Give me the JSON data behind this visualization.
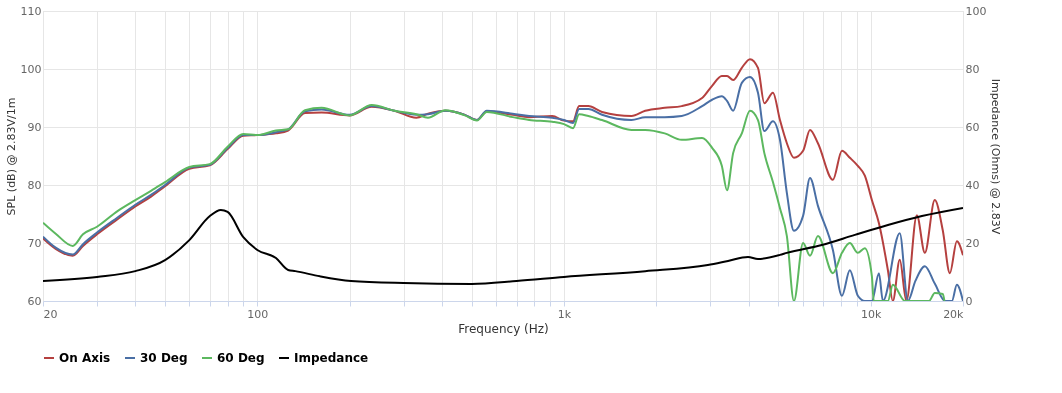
{
  "chart_data": {
    "type": "line",
    "xlabel": "Frequency (Hz)",
    "ylabel": "SPL (dB) @ 2.83V/1m",
    "y2label": "Impedance (Ohms) @ 2.83V",
    "log": "x",
    "grid": true,
    "legend": "bottom",
    "xlim": [
      20,
      20000
    ],
    "xticks": [
      20,
      {
        "value": 30,
        "label": null
      },
      {
        "value": 40,
        "label": null
      },
      {
        "value": 50,
        "label": null
      },
      {
        "value": 60,
        "label": null
      },
      {
        "value": 70,
        "label": null
      },
      {
        "value": 80,
        "label": null
      },
      {
        "value": 90,
        "label": null
      },
      100,
      {
        "value": 200,
        "label": null
      },
      {
        "value": 300,
        "label": null
      },
      {
        "value": 400,
        "label": null
      },
      {
        "value": 500,
        "label": null
      },
      {
        "value": 600,
        "label": null
      },
      {
        "value": 700,
        "label": null
      },
      {
        "value": 800,
        "label": null
      },
      {
        "value": 900,
        "label": null
      },
      {
        "value": 1000,
        "label": "1k"
      },
      {
        "value": 2000,
        "label": null
      },
      {
        "value": 3000,
        "label": null
      },
      {
        "value": 4000,
        "label": null
      },
      {
        "value": 5000,
        "label": null
      },
      {
        "value": 6000,
        "label": null
      },
      {
        "value": 7000,
        "label": null
      },
      {
        "value": 8000,
        "label": null
      },
      {
        "value": 9000,
        "label": null
      },
      {
        "value": 10000,
        "label": "10k"
      },
      {
        "value": 20000,
        "label": "20k"
      }
    ],
    "ylim": [
      60,
      110
    ],
    "yticks": [
      60,
      70,
      80,
      90,
      100,
      110
    ],
    "y2lim": [
      0,
      100
    ],
    "y2ticks": [
      0,
      20,
      40,
      60,
      80,
      100
    ],
    "series": [
      {
        "name": "On Axis",
        "color": "#b5403f",
        "x": [
          20,
          22,
          25,
          27,
          30,
          35,
          40,
          45,
          50,
          60,
          70,
          80,
          90,
          100,
          115,
          126,
          143,
          162,
          200,
          236,
          280,
          330,
          360,
          410,
          475,
          520,
          560,
          680,
          770,
          915,
          1000,
          1070,
          1120,
          1200,
          1330,
          1660,
          1840,
          2130,
          2420,
          2820,
          3040,
          3270,
          3400,
          3560,
          3800,
          4040,
          4290,
          4500,
          4800,
          5060,
          5330,
          5620,
          6020,
          6340,
          6730,
          7530,
          8060,
          8550,
          9080,
          9570,
          10090,
          10640,
          11380,
          11810,
          12440,
          13070,
          14140,
          15020,
          16180,
          17180,
          18120,
          19100,
          20000
        ],
        "values": [
          70.8,
          69.0,
          67.8,
          69.5,
          71.5,
          74.1,
          76.3,
          78.0,
          79.8,
          82.8,
          83.4,
          86.2,
          88.5,
          88.6,
          88.9,
          89.4,
          92.4,
          92.5,
          92.0,
          93.5,
          92.8,
          91.6,
          92.3,
          92.8,
          92.1,
          91.2,
          92.7,
          92.1,
          91.7,
          91.9,
          91.1,
          91.0,
          93.6,
          93.6,
          92.6,
          91.9,
          92.8,
          93.3,
          93.6,
          95.0,
          97.1,
          98.8,
          98.8,
          98.1,
          100.2,
          101.7,
          100.2,
          94.1,
          95.9,
          91.2,
          87.2,
          84.7,
          85.9,
          89.5,
          87.2,
          80.9,
          85.9,
          84.7,
          83.3,
          81.6,
          77.4,
          73.4,
          65.3,
          60,
          67.1,
          60,
          74.8,
          68.3,
          77.4,
          72.2,
          64.8,
          70.3,
          67.9
        ]
      },
      {
        "name": "30 Deg",
        "color": "#4a6fa5",
        "x": [
          20,
          22,
          25,
          27,
          30,
          35,
          40,
          45,
          50,
          60,
          70,
          80,
          90,
          100,
          115,
          126,
          143,
          162,
          200,
          236,
          280,
          330,
          360,
          410,
          475,
          520,
          560,
          680,
          770,
          915,
          1000,
          1070,
          1120,
          1200,
          1330,
          1660,
          1840,
          2130,
          2420,
          2820,
          3040,
          3270,
          3400,
          3560,
          3800,
          4040,
          4290,
          4500,
          4800,
          5060,
          5330,
          5620,
          6020,
          6340,
          6730,
          7530,
          8060,
          8550,
          9080,
          9570,
          10090,
          10640,
          10960,
          12440,
          13220,
          14000,
          15020,
          16180,
          17500,
          18400,
          19100,
          20000
        ],
        "values": [
          71.1,
          69.2,
          68.0,
          69.8,
          71.8,
          74.4,
          76.6,
          78.3,
          80.0,
          83.0,
          83.5,
          86.4,
          88.6,
          88.6,
          89.1,
          89.6,
          92.7,
          93.0,
          92.1,
          93.6,
          92.8,
          92.1,
          92.2,
          92.8,
          92.1,
          91.2,
          92.8,
          92.3,
          91.9,
          91.6,
          91.2,
          90.7,
          93.1,
          93.1,
          92.1,
          91.2,
          91.7,
          91.7,
          91.9,
          93.6,
          94.7,
          95.3,
          94.5,
          92.8,
          97.6,
          98.6,
          95.9,
          89.3,
          91.0,
          87.8,
          78.6,
          72.1,
          74.7,
          81.2,
          76.4,
          68.8,
          60.9,
          65.3,
          60.9,
          60,
          60,
          64.8,
          60,
          71.7,
          60,
          63.5,
          66.0,
          63.0,
          60,
          60,
          62.8,
          60
        ]
      },
      {
        "name": "60 Deg",
        "color": "#5cb85f",
        "x": [
          20,
          22,
          25,
          27,
          30,
          35,
          40,
          45,
          50,
          60,
          70,
          80,
          90,
          100,
          115,
          126,
          143,
          162,
          200,
          236,
          280,
          330,
          360,
          410,
          475,
          520,
          560,
          680,
          770,
          915,
          1000,
          1070,
          1120,
          1200,
          1330,
          1660,
          1840,
          2130,
          2420,
          2820,
          3040,
          3270,
          3400,
          3560,
          3800,
          4040,
          4290,
          4500,
          4800,
          5060,
          5330,
          5620,
          6020,
          6340,
          6730,
          7530,
          8060,
          8550,
          9080,
          9570,
          10090,
          10230,
          11380,
          11810,
          12940,
          15500,
          16180,
          17180,
          17400
        ],
        "values": [
          73.5,
          71.6,
          69.5,
          71.5,
          72.8,
          75.5,
          77.4,
          79.0,
          80.5,
          83.1,
          83.6,
          86.6,
          88.8,
          88.6,
          89.4,
          89.6,
          92.9,
          93.3,
          92.0,
          93.8,
          92.8,
          92.2,
          91.6,
          92.9,
          92.0,
          91.1,
          92.6,
          91.7,
          91.2,
          90.9,
          90.5,
          89.8,
          92.2,
          91.9,
          91.2,
          89.5,
          89.5,
          88.9,
          87.8,
          88.1,
          86.4,
          83.3,
          79.1,
          85.5,
          88.9,
          92.8,
          91.2,
          85.5,
          80.5,
          76.0,
          71.2,
          60,
          70.0,
          67.8,
          71.2,
          64.8,
          68.3,
          70.0,
          68.3,
          69.1,
          64.3,
          60,
          60,
          62.8,
          60,
          60,
          61.4,
          61.2,
          60
        ]
      },
      {
        "name": "Impedance",
        "color": "#000000",
        "axis": "y2",
        "x": [
          20,
          30,
          40,
          50,
          60,
          70,
          76,
          80,
          90,
          100,
          115,
          126,
          133,
          160,
          202,
          300,
          500,
          700,
          1000,
          1840,
          2944,
          3427,
          3980,
          4290,
          5060,
          5330,
          6930,
          8880,
          11380,
          14690,
          20000
        ],
        "values": [
          6.9,
          8.3,
          10.3,
          14.1,
          21.0,
          29.3,
          31.4,
          30.7,
          22.0,
          17.6,
          14.8,
          10.7,
          10.3,
          8.5,
          6.9,
          6.2,
          5.9,
          6.9,
          8.3,
          10.3,
          12.4,
          13.8,
          15.2,
          14.5,
          15.9,
          16.6,
          19.3,
          22.8,
          26.2,
          29.3,
          32.1
        ]
      }
    ]
  }
}
